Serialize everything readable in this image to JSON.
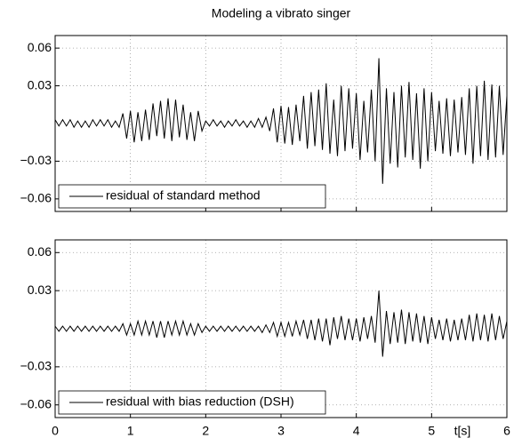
{
  "chart_data": [
    {
      "type": "line",
      "title": "Modeling a vibrato singer",
      "x": [
        0,
        0.05,
        0.1,
        0.15,
        0.2,
        0.25,
        0.3,
        0.35,
        0.4,
        0.45,
        0.5,
        0.55,
        0.6,
        0.65,
        0.7,
        0.75,
        0.8,
        0.85,
        0.9,
        0.95,
        1,
        1.05,
        1.1,
        1.15,
        1.2,
        1.25,
        1.3,
        1.35,
        1.4,
        1.45,
        1.5,
        1.55,
        1.6,
        1.65,
        1.7,
        1.75,
        1.8,
        1.85,
        1.9,
        1.95,
        2,
        2.05,
        2.1,
        2.15,
        2.2,
        2.25,
        2.3,
        2.35,
        2.4,
        2.45,
        2.5,
        2.55,
        2.6,
        2.65,
        2.7,
        2.75,
        2.8,
        2.85,
        2.9,
        2.95,
        3,
        3.05,
        3.1,
        3.15,
        3.2,
        3.25,
        3.3,
        3.35,
        3.4,
        3.45,
        3.5,
        3.55,
        3.6,
        3.65,
        3.7,
        3.75,
        3.8,
        3.85,
        3.9,
        3.95,
        4,
        4.05,
        4.1,
        4.15,
        4.2,
        4.25,
        4.3,
        4.35,
        4.4,
        4.45,
        4.5,
        4.55,
        4.6,
        4.65,
        4.7,
        4.75,
        4.8,
        4.85,
        4.9,
        4.95,
        5,
        5.05,
        5.1,
        5.15,
        5.2,
        5.25,
        5.3,
        5.35,
        5.4,
        5.45,
        5.5,
        5.55,
        5.6,
        5.65,
        5.7,
        5.75,
        5.8,
        5.85,
        5.9,
        5.95,
        6
      ],
      "series": [
        {
          "name": "residual of standard method",
          "color": "#000000",
          "values": [
            0.003,
            -0.002,
            0.003,
            -0.002,
            0.003,
            -0.003,
            0.002,
            -0.003,
            0.002,
            -0.003,
            0.003,
            -0.002,
            0.003,
            -0.002,
            0.003,
            -0.003,
            0.002,
            -0.003,
            0.008,
            -0.012,
            0.01,
            -0.015,
            0.009,
            -0.014,
            0.011,
            -0.013,
            0.016,
            -0.01,
            0.018,
            -0.012,
            0.02,
            -0.014,
            0.019,
            -0.011,
            0.015,
            -0.013,
            0.009,
            -0.014,
            0.01,
            -0.006,
            0.002,
            -0.002,
            0.003,
            -0.002,
            0.002,
            -0.003,
            0.002,
            -0.002,
            0.003,
            -0.002,
            0.002,
            -0.003,
            0.002,
            -0.003,
            0.004,
            -0.003,
            0.005,
            -0.006,
            0.012,
            -0.015,
            0.014,
            -0.016,
            0.013,
            -0.017,
            0.015,
            -0.014,
            0.022,
            -0.02,
            0.025,
            -0.018,
            0.027,
            -0.021,
            0.032,
            -0.024,
            0.019,
            -0.026,
            0.03,
            -0.022,
            0.028,
            -0.02,
            0.024,
            -0.029,
            0.018,
            -0.023,
            0.027,
            -0.03,
            0.052,
            -0.048,
            0.028,
            -0.032,
            0.025,
            -0.035,
            0.03,
            -0.027,
            0.033,
            -0.029,
            0.024,
            -0.036,
            0.028,
            -0.03,
            0.025,
            -0.022,
            0.018,
            -0.024,
            0.02,
            -0.026,
            0.019,
            -0.023,
            0.021,
            -0.025,
            0.028,
            -0.032,
            0.03,
            -0.026,
            0.034,
            -0.029,
            0.031,
            -0.027,
            0.03,
            -0.025,
            0.022
          ]
        }
      ],
      "xlim": [
        0,
        6
      ],
      "xticks": [
        0,
        1,
        2,
        3,
        4,
        5,
        6
      ],
      "ylim": [
        -0.07,
        0.07
      ],
      "yticks": [
        {
          "value": -0.06,
          "label": "−0.06"
        },
        {
          "value": -0.03,
          "label": "−0.03"
        },
        0.03,
        0.06
      ],
      "grid": true
    },
    {
      "type": "line",
      "xlabel": "t[s]",
      "x": [
        0,
        0.05,
        0.1,
        0.15,
        0.2,
        0.25,
        0.3,
        0.35,
        0.4,
        0.45,
        0.5,
        0.55,
        0.6,
        0.65,
        0.7,
        0.75,
        0.8,
        0.85,
        0.9,
        0.95,
        1,
        1.05,
        1.1,
        1.15,
        1.2,
        1.25,
        1.3,
        1.35,
        1.4,
        1.45,
        1.5,
        1.55,
        1.6,
        1.65,
        1.7,
        1.75,
        1.8,
        1.85,
        1.9,
        1.95,
        2,
        2.05,
        2.1,
        2.15,
        2.2,
        2.25,
        2.3,
        2.35,
        2.4,
        2.45,
        2.5,
        2.55,
        2.6,
        2.65,
        2.7,
        2.75,
        2.8,
        2.85,
        2.9,
        2.95,
        3,
        3.05,
        3.1,
        3.15,
        3.2,
        3.25,
        3.3,
        3.35,
        3.4,
        3.45,
        3.5,
        3.55,
        3.6,
        3.65,
        3.7,
        3.75,
        3.8,
        3.85,
        3.9,
        3.95,
        4,
        4.05,
        4.1,
        4.15,
        4.2,
        4.25,
        4.3,
        4.35,
        4.4,
        4.45,
        4.5,
        4.55,
        4.6,
        4.65,
        4.7,
        4.75,
        4.8,
        4.85,
        4.9,
        4.95,
        5,
        5.05,
        5.1,
        5.15,
        5.2,
        5.25,
        5.3,
        5.35,
        5.4,
        5.45,
        5.5,
        5.55,
        5.6,
        5.65,
        5.7,
        5.75,
        5.8,
        5.85,
        5.9,
        5.95,
        6
      ],
      "series": [
        {
          "name": "residual with bias reduction (DSH)",
          "color": "#000000",
          "values": [
            0.002,
            -0.002,
            0.002,
            -0.002,
            0.002,
            -0.002,
            0.002,
            -0.002,
            0.002,
            -0.002,
            0.002,
            -0.002,
            0.002,
            -0.002,
            0.002,
            -0.002,
            0.002,
            -0.002,
            0.004,
            -0.005,
            0.004,
            -0.005,
            0.006,
            -0.005,
            0.006,
            -0.005,
            0.006,
            -0.007,
            0.006,
            -0.007,
            0.006,
            -0.005,
            0.006,
            -0.005,
            0.006,
            -0.005,
            0.004,
            -0.005,
            0.004,
            -0.003,
            0.002,
            -0.002,
            0.002,
            -0.002,
            0.002,
            -0.002,
            0.002,
            -0.002,
            0.002,
            -0.002,
            0.002,
            -0.002,
            0.002,
            -0.002,
            0.002,
            -0.003,
            0.003,
            -0.003,
            0.005,
            -0.006,
            0.005,
            -0.006,
            0.005,
            -0.006,
            0.006,
            -0.005,
            0.007,
            -0.008,
            0.007,
            -0.009,
            0.008,
            -0.01,
            0.008,
            -0.013,
            0.009,
            -0.008,
            0.01,
            -0.009,
            0.008,
            -0.009,
            0.008,
            -0.01,
            0.009,
            -0.008,
            0.01,
            -0.011,
            0.03,
            -0.022,
            0.014,
            -0.012,
            0.013,
            -0.011,
            0.015,
            -0.012,
            0.013,
            -0.01,
            0.012,
            -0.011,
            0.01,
            -0.012,
            0.009,
            -0.008,
            0.007,
            -0.009,
            0.008,
            -0.01,
            0.007,
            -0.009,
            0.008,
            -0.009,
            0.011,
            -0.01,
            0.012,
            -0.009,
            0.011,
            -0.01,
            0.012,
            -0.009,
            0.01,
            -0.008,
            0.006
          ]
        }
      ],
      "xlim": [
        0,
        6
      ],
      "xticks": [
        0,
        1,
        2,
        3,
        4,
        5,
        6
      ],
      "ylim": [
        -0.07,
        0.07
      ],
      "yticks": [
        {
          "value": -0.06,
          "label": "−0.06"
        },
        {
          "value": -0.03,
          "label": "−0.03"
        },
        0.03,
        0.06
      ],
      "grid": true
    }
  ]
}
